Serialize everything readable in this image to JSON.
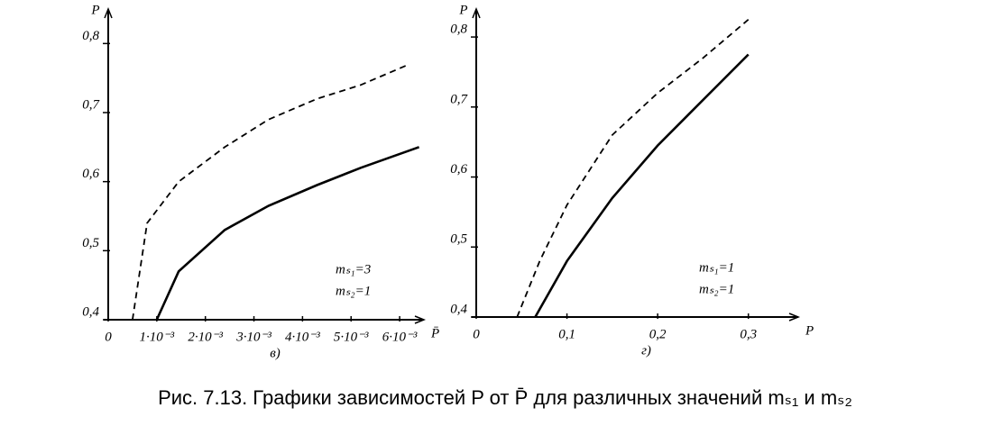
{
  "chart_data": [
    {
      "type": "line",
      "subplot_label": "в)",
      "xlabel": "P̄",
      "ylabel": "P",
      "annotations": [
        "mₛ₁=3",
        "mₛ₂=1"
      ],
      "xlim": [
        0,
        0.0065
      ],
      "ylim": [
        0.4,
        0.85
      ],
      "xticks": [
        0,
        {
          "value": 0.001,
          "label": "1·10⁻³"
        },
        {
          "value": 0.002,
          "label": "2·10⁻³"
        },
        {
          "value": 0.003,
          "label": "3·10⁻³"
        },
        {
          "value": 0.004,
          "label": "4·10⁻³"
        },
        {
          "value": 0.005,
          "label": "5·10⁻³"
        },
        {
          "value": 0.006,
          "label": "6·10⁻³"
        }
      ],
      "yticks": [
        {
          "value": 0.4,
          "label": "0,4"
        },
        {
          "value": 0.5,
          "label": "0,5"
        },
        {
          "value": 0.6,
          "label": "0,6"
        },
        {
          "value": 0.7,
          "label": "0,7"
        },
        {
          "value": 0.8,
          "label": "0,8"
        }
      ],
      "series": [
        {
          "color": "#000000",
          "style": "dashed",
          "x": [
            0.0005,
            0.00065,
            0.0008,
            0.00145,
            0.0024,
            0.0033,
            0.0043,
            0.0052,
            0.0062
          ],
          "values": [
            0.4,
            0.47,
            0.54,
            0.6,
            0.65,
            0.69,
            0.72,
            0.74,
            0.77
          ]
        },
        {
          "color": "#000000",
          "style": "solid",
          "x": [
            0.001,
            0.00145,
            0.0024,
            0.0033,
            0.0043,
            0.0052,
            0.0064
          ],
          "values": [
            0.4,
            0.47,
            0.53,
            0.565,
            0.595,
            0.62,
            0.65
          ]
        }
      ]
    },
    {
      "type": "line",
      "subplot_label": "г)",
      "xlabel": "P",
      "ylabel": "P",
      "annotations": [
        "mₛ₁=1",
        "mₛ₂=1"
      ],
      "xlim": [
        0,
        0.355
      ],
      "ylim": [
        0.4,
        0.84
      ],
      "xticks": [
        0,
        {
          "value": 0.1,
          "label": "0,1"
        },
        {
          "value": 0.2,
          "label": "0,2"
        },
        {
          "value": 0.3,
          "label": "0,3"
        }
      ],
      "yticks": [
        {
          "value": 0.4,
          "label": "0,4"
        },
        {
          "value": 0.5,
          "label": "0,5"
        },
        {
          "value": 0.6,
          "label": "0,6"
        },
        {
          "value": 0.7,
          "label": "0,7"
        },
        {
          "value": 0.8,
          "label": "0,8"
        }
      ],
      "series": [
        {
          "color": "#000000",
          "style": "dashed",
          "x": [
            0.045,
            0.07,
            0.1,
            0.15,
            0.2,
            0.25,
            0.3
          ],
          "values": [
            0.4,
            0.48,
            0.56,
            0.66,
            0.72,
            0.77,
            0.825
          ]
        },
        {
          "color": "#000000",
          "style": "solid",
          "x": [
            0.065,
            0.1,
            0.15,
            0.2,
            0.25,
            0.3
          ],
          "values": [
            0.4,
            0.48,
            0.57,
            0.645,
            0.71,
            0.775
          ]
        }
      ]
    }
  ],
  "caption": "Рис. 7.13. Графики зависимостей P от P̄ для различных значений mₛ₁ и mₛ₂"
}
